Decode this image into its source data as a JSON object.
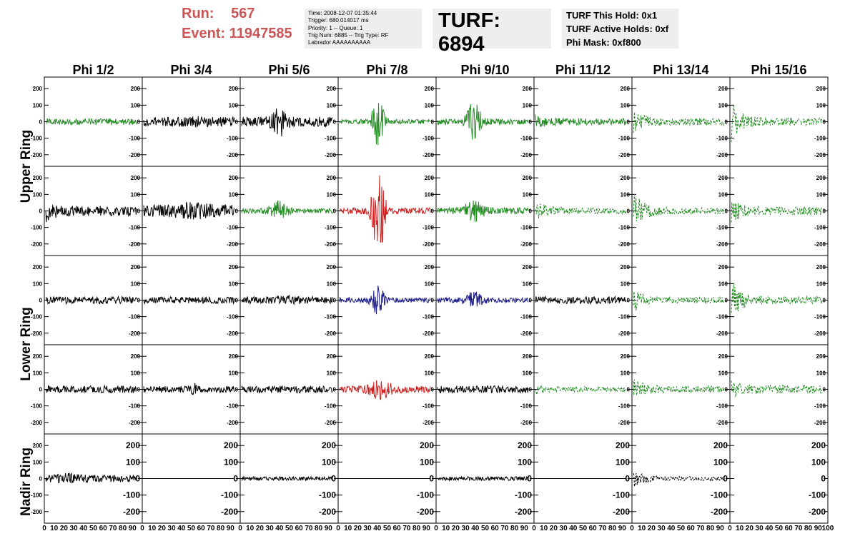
{
  "header": {
    "run_label": "Run:",
    "run_value": "567",
    "event_label": "Event:",
    "event_value": "11947585",
    "info_lines": [
      "Time: 2008-12-07 01:35:44",
      "Trigger: 680.014017 ms",
      "Priority: 1 -- Queue: 1",
      "Trig Num: 6885 -- Trig Type: RF",
      "Labrador AAAAAAAAAA"
    ],
    "turf_label": "TURF: 6894",
    "hold_lines": [
      "TURF This Hold: 0x1",
      "TURF Active Holds: 0xf",
      "Phi Mask: 0xf800"
    ]
  },
  "colors": {
    "black": "#000000",
    "green": "#228b22",
    "red": "#cc2222",
    "blue": "#1a1a88",
    "header_red": "#cc5555",
    "panel_bg": "#eeeeee"
  },
  "chart_data": {
    "type": "line",
    "columns": [
      "Phi 1/2",
      "Phi 3/4",
      "Phi 5/6",
      "Phi 7/8",
      "Phi 9/10",
      "Phi 11/12",
      "Phi 13/14",
      "Phi 15/16"
    ],
    "rows": [
      "Upper Ring",
      "Lower Ring",
      "Nadir Ring"
    ],
    "ylim": [
      -270,
      270
    ],
    "yticks": [
      -200,
      -100,
      0,
      100,
      200
    ],
    "xlim": [
      0,
      100
    ],
    "xticks": [
      0,
      10,
      20,
      30,
      40,
      50,
      60,
      70,
      80,
      90,
      100
    ],
    "xtick_labels": [
      "0",
      "10",
      "20",
      "30",
      "40",
      "50",
      "60",
      "70",
      "80",
      "90",
      "100"
    ],
    "x_last_label": "100",
    "panels": [
      [
        {
          "color": "green",
          "style": "solid",
          "amp": 20,
          "burst_amp": 0,
          "burst_center": 0,
          "burst_width": 10,
          "start_amp": 0
        },
        {
          "color": "black",
          "style": "solid",
          "amp": 28,
          "burst_amp": 10,
          "burst_center": 55,
          "burst_width": 15,
          "start_amp": 0
        },
        {
          "color": "black",
          "style": "solid",
          "amp": 30,
          "burst_amp": 70,
          "burst_center": 42,
          "burst_width": 8,
          "start_amp": 0
        },
        {
          "color": "green",
          "style": "solid",
          "amp": 15,
          "burst_amp": 130,
          "burst_center": 42,
          "burst_width": 7,
          "start_amp": 0
        },
        {
          "color": "green",
          "style": "solid",
          "amp": 18,
          "burst_amp": 110,
          "burst_center": 40,
          "burst_width": 8,
          "start_amp": 0
        },
        {
          "color": "green",
          "style": "solid",
          "amp": 20,
          "burst_amp": 0,
          "burst_center": 0,
          "burst_width": 10,
          "start_amp": 25
        },
        {
          "color": "green",
          "style": "dashed",
          "amp": 22,
          "burst_amp": 0,
          "burst_center": 0,
          "burst_width": 10,
          "start_amp": 60
        },
        {
          "color": "green",
          "style": "dashed",
          "amp": 22,
          "burst_amp": 0,
          "burst_center": 0,
          "burst_width": 10,
          "start_amp": 110
        }
      ],
      [
        {
          "color": "black",
          "style": "solid",
          "amp": 30,
          "burst_amp": 0,
          "burst_center": 0,
          "burst_width": 10,
          "start_amp": 40
        },
        {
          "color": "black",
          "style": "solid",
          "amp": 38,
          "burst_amp": 20,
          "burst_center": 55,
          "burst_width": 15,
          "start_amp": 0
        },
        {
          "color": "green",
          "style": "solid",
          "amp": 15,
          "burst_amp": 50,
          "burst_center": 40,
          "burst_width": 10,
          "start_amp": 0
        },
        {
          "color": "red",
          "style": "solid",
          "amp": 20,
          "burst_amp": 260,
          "burst_center": 43,
          "burst_width": 7,
          "start_amp": 0
        },
        {
          "color": "green",
          "style": "solid",
          "amp": 20,
          "burst_amp": 50,
          "burst_center": 40,
          "burst_width": 10,
          "start_amp": 0
        },
        {
          "color": "green",
          "style": "dashed",
          "amp": 18,
          "burst_amp": 0,
          "burst_center": 0,
          "burst_width": 10,
          "start_amp": 60
        },
        {
          "color": "green",
          "style": "dashed",
          "amp": 20,
          "burst_amp": 0,
          "burst_center": 0,
          "burst_width": 10,
          "start_amp": 110
        },
        {
          "color": "green",
          "style": "dashed",
          "amp": 25,
          "burst_amp": 0,
          "burst_center": 0,
          "burst_width": 10,
          "start_amp": 60
        }
      ],
      [
        {
          "color": "black",
          "style": "solid",
          "amp": 22,
          "burst_amp": 0,
          "burst_center": 0,
          "burst_width": 10,
          "start_amp": 0
        },
        {
          "color": "black",
          "style": "solid",
          "amp": 20,
          "burst_amp": 0,
          "burst_center": 0,
          "burst_width": 10,
          "start_amp": 0
        },
        {
          "color": "black",
          "style": "solid",
          "amp": 22,
          "burst_amp": 10,
          "burst_center": 50,
          "burst_width": 10,
          "start_amp": 0
        },
        {
          "color": "blue",
          "style": "solid",
          "amp": 15,
          "burst_amp": 90,
          "burst_center": 42,
          "burst_width": 7,
          "start_amp": 0
        },
        {
          "color": "blue",
          "style": "solid",
          "amp": 15,
          "burst_amp": 40,
          "burst_center": 40,
          "burst_width": 10,
          "start_amp": 0
        },
        {
          "color": "black",
          "style": "solid",
          "amp": 22,
          "burst_amp": 0,
          "burst_center": 0,
          "burst_width": 10,
          "start_amp": 0
        },
        {
          "color": "green",
          "style": "dashed",
          "amp": 18,
          "burst_amp": 0,
          "burst_center": 0,
          "burst_width": 10,
          "start_amp": 60
        },
        {
          "color": "green",
          "style": "dashed",
          "amp": 22,
          "burst_amp": 0,
          "burst_center": 0,
          "burst_width": 10,
          "start_amp": 110
        }
      ],
      [
        {
          "color": "black",
          "style": "solid",
          "amp": 22,
          "burst_amp": 0,
          "burst_center": 0,
          "burst_width": 10,
          "start_amp": 0
        },
        {
          "color": "black",
          "style": "solid",
          "amp": 20,
          "burst_amp": 25,
          "burst_center": 55,
          "burst_width": 3,
          "start_amp": 0
        },
        {
          "color": "black",
          "style": "solid",
          "amp": 22,
          "burst_amp": 0,
          "burst_center": 0,
          "burst_width": 10,
          "start_amp": 0
        },
        {
          "color": "red",
          "style": "solid",
          "amp": 20,
          "burst_amp": 50,
          "burst_center": 45,
          "burst_width": 12,
          "start_amp": 0
        },
        {
          "color": "black",
          "style": "solid",
          "amp": 22,
          "burst_amp": 0,
          "burst_center": 0,
          "burst_width": 10,
          "start_amp": 0
        },
        {
          "color": "green",
          "style": "dashed",
          "amp": 15,
          "burst_amp": 0,
          "burst_center": 0,
          "burst_width": 10,
          "start_amp": 20
        },
        {
          "color": "green",
          "style": "dashed",
          "amp": 20,
          "burst_amp": 0,
          "burst_center": 0,
          "burst_width": 10,
          "start_amp": 50
        },
        {
          "color": "green",
          "style": "dashed",
          "amp": 25,
          "burst_amp": 0,
          "burst_center": 0,
          "burst_width": 10,
          "start_amp": 30
        }
      ],
      [
        {
          "color": "black",
          "style": "solid",
          "amp": 22,
          "burst_amp": 15,
          "burst_center": 25,
          "burst_width": 10,
          "start_amp": 0
        },
        {
          "color": "black",
          "style": "flat",
          "amp": 0,
          "burst_amp": 0,
          "burst_center": 0,
          "burst_width": 10,
          "start_amp": 0
        },
        {
          "color": "black",
          "style": "solid",
          "amp": 12,
          "burst_amp": 0,
          "burst_center": 0,
          "burst_width": 10,
          "start_amp": 0
        },
        {
          "color": "black",
          "style": "flat",
          "amp": 0,
          "burst_amp": 0,
          "burst_center": 0,
          "burst_width": 10,
          "start_amp": 0
        },
        {
          "color": "black",
          "style": "solid",
          "amp": 12,
          "burst_amp": 0,
          "burst_center": 0,
          "burst_width": 10,
          "start_amp": 0
        },
        {
          "color": "black",
          "style": "flat",
          "amp": 0,
          "burst_amp": 0,
          "burst_center": 0,
          "burst_width": 10,
          "start_amp": 0
        },
        {
          "color": "black",
          "style": "dashed",
          "amp": 12,
          "burst_amp": 0,
          "burst_center": 0,
          "burst_width": 10,
          "start_amp": 45
        },
        {
          "color": "black",
          "style": "none",
          "amp": 0,
          "burst_amp": 0,
          "burst_center": 0,
          "burst_width": 10,
          "start_amp": 0
        }
      ]
    ]
  }
}
